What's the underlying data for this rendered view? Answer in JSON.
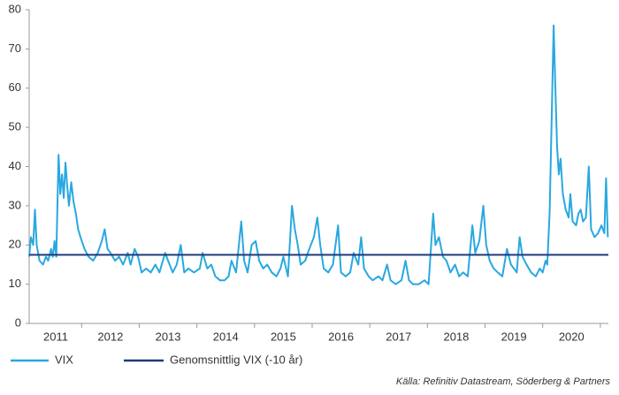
{
  "chart_data": {
    "type": "line",
    "categories": [
      "2011",
      "2012",
      "2013",
      "2014",
      "2015",
      "2016",
      "2017",
      "2018",
      "2019",
      "2020"
    ],
    "x": [
      2011.09,
      2011.12,
      2011.16,
      2011.19,
      2011.22,
      2011.27,
      2011.33,
      2011.38,
      2011.42,
      2011.47,
      2011.5,
      2011.53,
      2011.56,
      2011.6,
      2011.63,
      2011.66,
      2011.69,
      2011.72,
      2011.75,
      2011.78,
      2011.82,
      2011.86,
      2011.9,
      2011.94,
      2011.98,
      2012.05,
      2012.12,
      2012.2,
      2012.28,
      2012.35,
      2012.4,
      2012.45,
      2012.5,
      2012.58,
      2012.65,
      2012.72,
      2012.8,
      2012.85,
      2012.92,
      2012.98,
      2013.04,
      2013.12,
      2013.2,
      2013.28,
      2013.35,
      2013.45,
      2013.5,
      2013.58,
      2013.65,
      2013.72,
      2013.78,
      2013.85,
      2013.95,
      2014.05,
      2014.1,
      2014.18,
      2014.25,
      2014.32,
      2014.4,
      2014.48,
      2014.55,
      2014.6,
      2014.68,
      2014.77,
      2014.82,
      2014.88,
      2014.95,
      2015.02,
      2015.08,
      2015.15,
      2015.22,
      2015.3,
      2015.38,
      2015.45,
      2015.5,
      2015.58,
      2015.65,
      2015.7,
      2015.75,
      2015.8,
      2015.88,
      2015.95,
      2016.03,
      2016.09,
      2016.14,
      2016.2,
      2016.28,
      2016.36,
      2016.45,
      2016.5,
      2016.58,
      2016.66,
      2016.72,
      2016.8,
      2016.85,
      2016.9,
      2016.98,
      2017.05,
      2017.15,
      2017.22,
      2017.3,
      2017.36,
      2017.45,
      2017.55,
      2017.62,
      2017.68,
      2017.75,
      2017.85,
      2017.95,
      2018.02,
      2018.1,
      2018.14,
      2018.2,
      2018.27,
      2018.33,
      2018.4,
      2018.48,
      2018.55,
      2018.62,
      2018.7,
      2018.78,
      2018.83,
      2018.9,
      2018.97,
      2019.02,
      2019.08,
      2019.15,
      2019.22,
      2019.3,
      2019.38,
      2019.45,
      2019.55,
      2019.6,
      2019.65,
      2019.72,
      2019.8,
      2019.88,
      2019.95,
      2020.0,
      2020.05,
      2020.08,
      2020.12,
      2020.16,
      2020.19,
      2020.22,
      2020.25,
      2020.28,
      2020.31,
      2020.35,
      2020.4,
      2020.45,
      2020.48,
      2020.52,
      2020.58,
      2020.62,
      2020.66,
      2020.7,
      2020.75,
      2020.8,
      2020.84,
      2020.9,
      2020.96,
      2021.02,
      2021.07,
      2021.1,
      2021.13
    ],
    "series": [
      {
        "name": "VIX",
        "color": "#29a8e0",
        "values": [
          17,
          22,
          20,
          29,
          20,
          16,
          15,
          17,
          16,
          19,
          17,
          21,
          17,
          43,
          33,
          38,
          32,
          41,
          35,
          30,
          36,
          31,
          28,
          24,
          22,
          19,
          17,
          16,
          18,
          21,
          24,
          19,
          18,
          16,
          17,
          15,
          18,
          15,
          19,
          17,
          13,
          14,
          13,
          15,
          13,
          18,
          16,
          13,
          15,
          20,
          13,
          14,
          13,
          14,
          18,
          14,
          15,
          12,
          11,
          11,
          12,
          16,
          13,
          26,
          16,
          13,
          20,
          21,
          16,
          14,
          15,
          13,
          12,
          14,
          17,
          12,
          30,
          24,
          20,
          15,
          16,
          19,
          22,
          27,
          20,
          14,
          13,
          15,
          25,
          13,
          12,
          13,
          18,
          15,
          22,
          14,
          12,
          11,
          12,
          11,
          15,
          11,
          10,
          11,
          16,
          11,
          10,
          10,
          11,
          10,
          28,
          20,
          22,
          17,
          16,
          13,
          15,
          12,
          13,
          12,
          25,
          18,
          21,
          30,
          20,
          16,
          14,
          13,
          12,
          19,
          15,
          13,
          22,
          17,
          15,
          13,
          12,
          14,
          13,
          16,
          15,
          28,
          55,
          76,
          60,
          45,
          38,
          42,
          33,
          29,
          27,
          33,
          26,
          25,
          28,
          29,
          26,
          27,
          40,
          24,
          22,
          23,
          25,
          23,
          37,
          22
        ]
      }
    ],
    "average": {
      "name": "Genomsnittlig VIX (-10 år)",
      "color": "#1f3a7a",
      "value": 17.5
    },
    "xlim": [
      2011.09,
      2021.14
    ],
    "xticks": [
      2012,
      2013,
      2014,
      2015,
      2016,
      2017,
      2018,
      2019,
      2020,
      2021
    ],
    "ylim": [
      0,
      80
    ],
    "yticks": [
      0,
      10,
      20,
      30,
      40,
      50,
      60,
      70,
      80
    ],
    "grid": false,
    "source": "Källa: Refinitiv Datastream, Söderberg & Partners"
  }
}
